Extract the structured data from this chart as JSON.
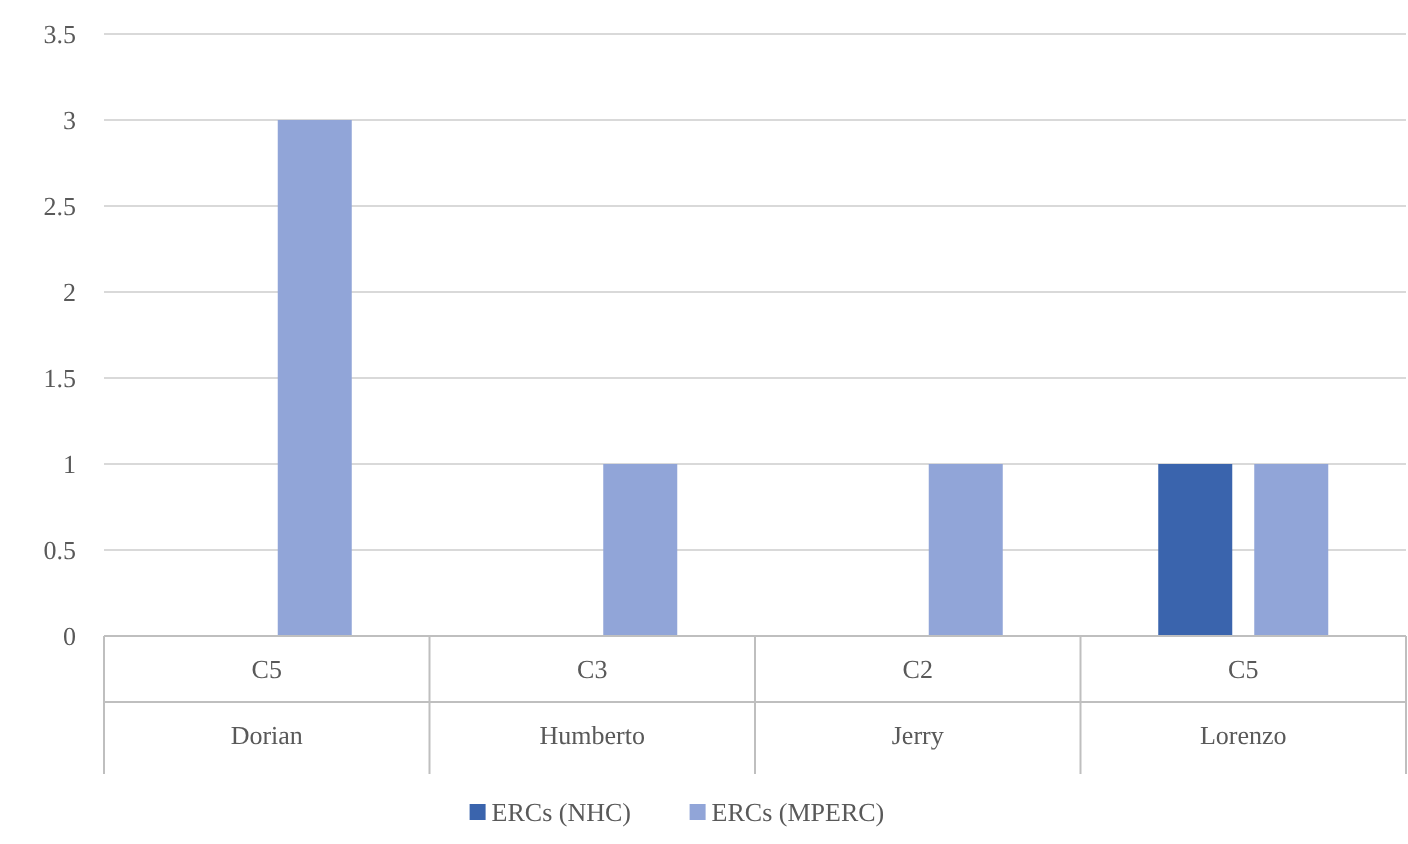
{
  "chart_data": {
    "type": "bar",
    "categories": [
      "C5\nDorian",
      "C3\nHumberto",
      "C2\nJerry",
      "C5\nLorenzo"
    ],
    "series": [
      {
        "name": "ERCs (NHC)",
        "color": "#3a64ad",
        "values": [
          0,
          0,
          0,
          1
        ]
      },
      {
        "name": "ERCs (MPERC)",
        "color": "#91a5d8",
        "values": [
          3,
          1,
          1,
          1
        ]
      }
    ],
    "ylim": [
      0,
      3.5
    ],
    "yticks": [
      0,
      0.5,
      1,
      1.5,
      2,
      2.5,
      3,
      3.5
    ],
    "grid": "y",
    "legend": "bottom"
  }
}
